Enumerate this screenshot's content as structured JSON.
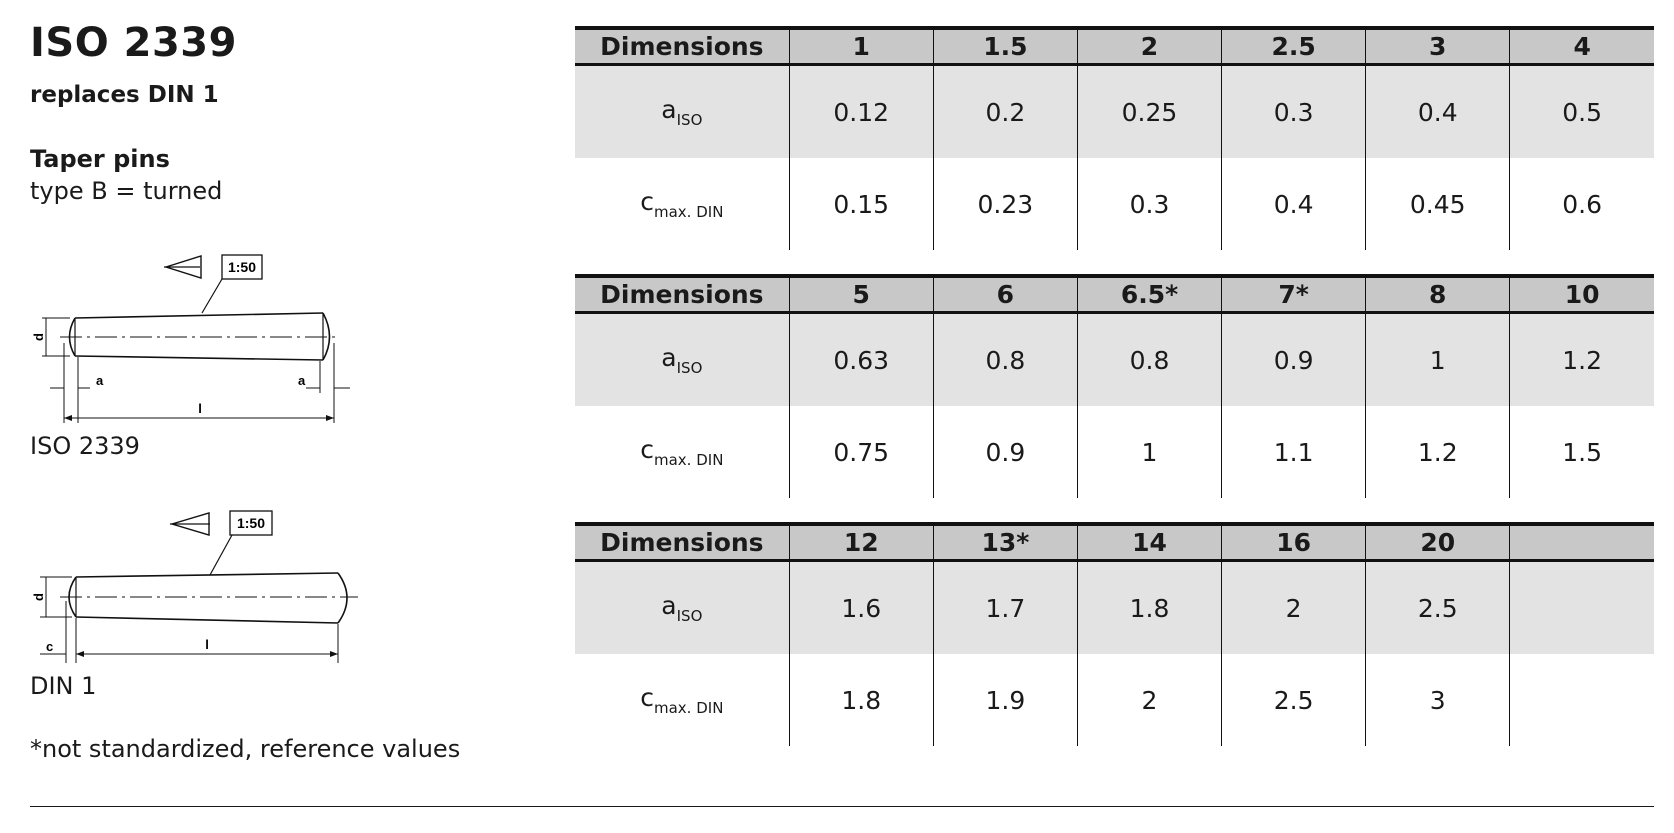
{
  "header": {
    "title": "ISO 2339",
    "subtitle": "replaces DIN 1",
    "heading": "Taper pins",
    "type_line": "type B = turned"
  },
  "drawings": {
    "iso": {
      "caption": "ISO 2339",
      "taper": "1:50",
      "dim_d": "d",
      "dim_a": "a",
      "dim_l": "l"
    },
    "din": {
      "caption": "DIN 1",
      "taper": "1:50",
      "dim_d": "d",
      "dim_c": "c",
      "dim_l": "l"
    }
  },
  "footnote": "*not standardized, reference values",
  "tables": [
    {
      "header_label": "Dimensions",
      "sizes": [
        "1",
        "1.5",
        "2",
        "2.5",
        "3",
        "4"
      ],
      "rows": [
        {
          "label_main": "a",
          "label_sub": "ISO",
          "values": [
            "0.12",
            "0.2",
            "0.25",
            "0.3",
            "0.4",
            "0.5"
          ]
        },
        {
          "label_main": "c",
          "label_sub": "max. DIN",
          "values": [
            "0.15",
            "0.23",
            "0.3",
            "0.4",
            "0.45",
            "0.6"
          ]
        }
      ]
    },
    {
      "header_label": "Dimensions",
      "sizes": [
        "5",
        "6",
        "6.5*",
        "7*",
        "8",
        "10"
      ],
      "rows": [
        {
          "label_main": "a",
          "label_sub": "ISO",
          "values": [
            "0.63",
            "0.8",
            "0.8",
            "0.9",
            "1",
            "1.2"
          ]
        },
        {
          "label_main": "c",
          "label_sub": "max. DIN",
          "values": [
            "0.75",
            "0.9",
            "1",
            "1.1",
            "1.2",
            "1.5"
          ]
        }
      ]
    },
    {
      "header_label": "Dimensions",
      "sizes": [
        "12",
        "13*",
        "14",
        "16",
        "20",
        ""
      ],
      "rows": [
        {
          "label_main": "a",
          "label_sub": "ISO",
          "values": [
            "1.6",
            "1.7",
            "1.8",
            "2",
            "2.5",
            ""
          ]
        },
        {
          "label_main": "c",
          "label_sub": "max. DIN",
          "values": [
            "1.8",
            "1.9",
            "2",
            "2.5",
            "3",
            ""
          ]
        }
      ]
    }
  ]
}
